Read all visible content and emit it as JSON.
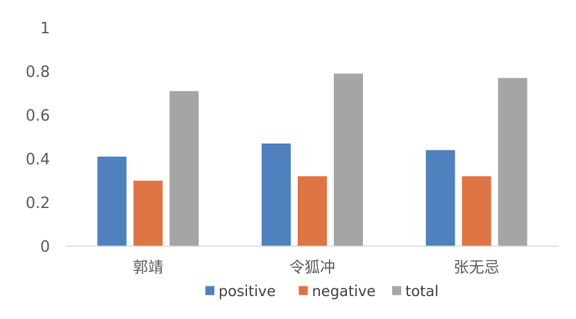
{
  "chart_data": {
    "type": "bar",
    "categories": [
      "郭靖",
      "令狐冲",
      "张无忌"
    ],
    "series": [
      {
        "name": "positive",
        "values": [
          0.41,
          0.47,
          0.44
        ],
        "color": "#4E81BD"
      },
      {
        "name": "negative",
        "values": [
          0.3,
          0.32,
          0.32
        ],
        "color": "#DE7343"
      },
      {
        "name": "total",
        "values": [
          0.71,
          0.79,
          0.77
        ],
        "color": "#A5A5A5"
      }
    ],
    "ylim": [
      0,
      1
    ],
    "yticks": [
      0,
      0.2,
      0.4,
      0.6,
      0.8,
      1
    ],
    "ytick_labels": [
      "0",
      "0.2",
      "0.4",
      "0.6",
      "0.8",
      "1"
    ],
    "title": "",
    "xlabel": "",
    "ylabel": "",
    "grid": false,
    "legend_position": "bottom"
  }
}
